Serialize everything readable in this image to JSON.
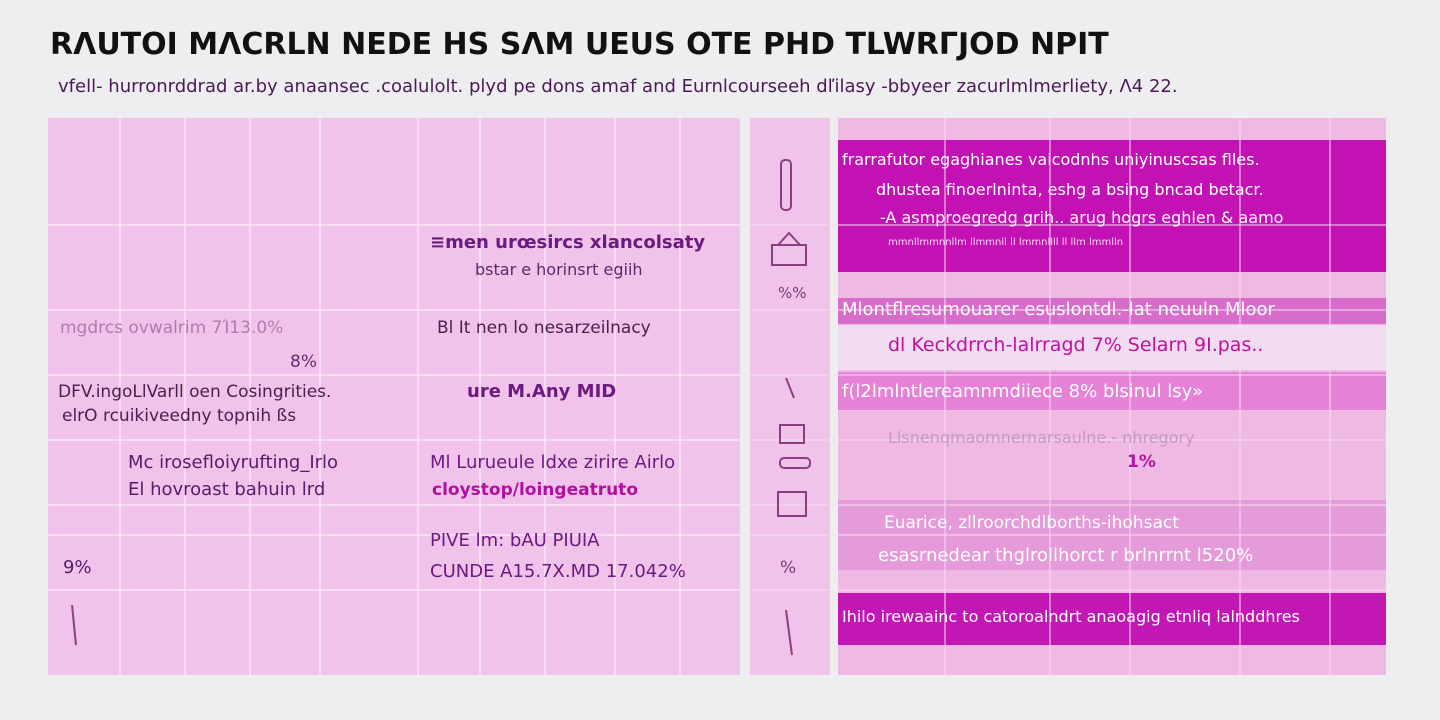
{
  "header": {
    "title": "RΛUTOI MΛCRLN NEDE HS SΛM  UEUS OTE PHD TLWRΓJOD      NPIT",
    "subtitle": "vfell- hurronrddrad ar.by anaansec .coalulolt.  plyd pe dons  amaf and  Eurnlcourseeh dľilasy -bbyeer    zacurlmlmerliety, Λ4 22."
  },
  "left_panel": {
    "blocks": [
      "≡men  urœsircs  xlancolsaty",
      "bstar e  horinsrt egiih",
      "mgdrcs       ovwalrim 7Ί13.0%",
      "8%",
      "DFV.ingoLlVarll  oen  Cosingrities.",
      "elrO  rcuikiveedny topnih  ßs",
      "Mc  irosefloiyrufting_Irlo",
      "El  hovroast  bahuin   lrd",
      "9%",
      "Bl It  nen  lo  nesarzeilnacy",
      "ure M.Any  MID",
      "Ml Lurueule ldxe  zirire  Airlo",
      "cloystop/loingeatruto",
      "PIVE lm:   bAU  PIUIA",
      "CUNDE A15.7X.MD 17.042%"
    ]
  },
  "right_panel": {
    "icon_labels": [
      "%%",
      "%"
    ],
    "blocks": [
      "frarrafutor egaghianes vaicodnhs uniyinuscsas flles.",
      "dhustea  finoerlninta, eshg a bsing  bncad betacr.",
      "-A asmproegredg grih.. arug hogrs eghlen & aamo",
      "mmnllmmnnllm  llmmnll  ll  lmmnllll ll  llm  lmmlln",
      "Mlontflresumouarer esuslontdl.-lat neuuln Mloor",
      "dl Keckdrrch-lalrragd  7%  Selarn 9I.pas..",
      "f(l2lmlntlereamnmdiiece   8%  blsinul lsy»",
      "Llsnenqmaomnernarsaulne.-  nhregory",
      "1%",
      "Euarice, zllroorchdlborths-ihohsact",
      "esasrnedear thglrollhorct r  brlnrrnt l520%",
      "Ihilo  irewaainc to catoroalndrt anaoagig  etnliq lalnddhres"
    ]
  }
}
